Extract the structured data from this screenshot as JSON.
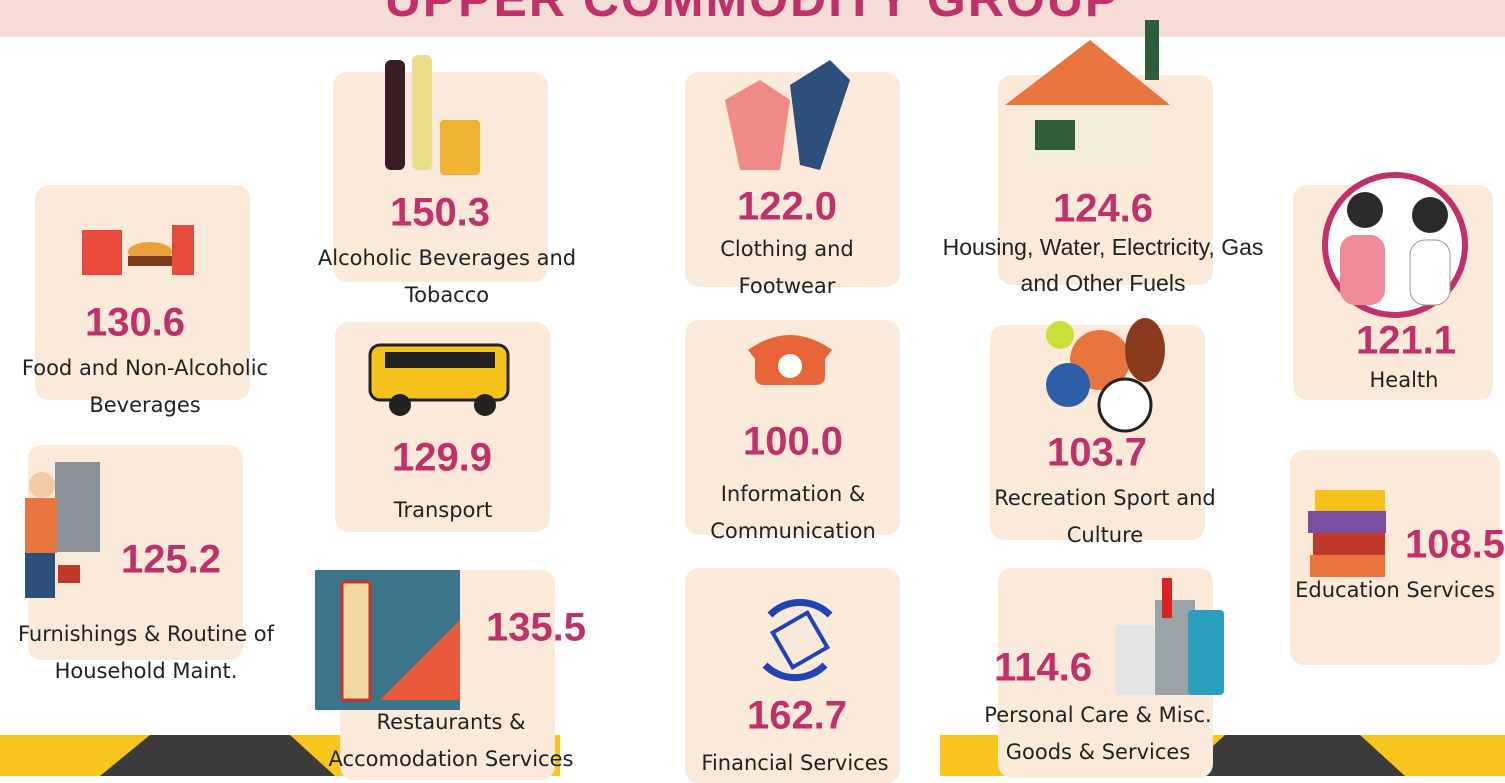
{
  "title": "UPPER COMMODITY GROUP",
  "items": [
    {
      "value": "130.6",
      "label": "Food and Non-Alcoholic Beverages"
    },
    {
      "value": "150.3",
      "label": "Alcoholic Beverages and Tobacco"
    },
    {
      "value": "122.0",
      "label": "Clothing and Footwear"
    },
    {
      "value": "124.6",
      "label": "Housing, Water, Electricity, Gas and Other Fuels"
    },
    {
      "value": "121.1",
      "label": "Health"
    },
    {
      "value": "125.2",
      "label": "Furnishings  & Routine of Household Maint."
    },
    {
      "value": "129.9",
      "label": "Transport"
    },
    {
      "value": "100.0",
      "label": "Information & Communication"
    },
    {
      "value": "103.7",
      "label": "Recreation Sport and Culture"
    },
    {
      "value": "108.5",
      "label": "Education Services"
    },
    {
      "value": "135.5",
      "label": "Restaurants & Accomodation Services"
    },
    {
      "value": "162.7",
      "label": "Financial Services"
    },
    {
      "value": "114.6",
      "label": "Personal Care & Misc. Goods & Services"
    }
  ]
}
